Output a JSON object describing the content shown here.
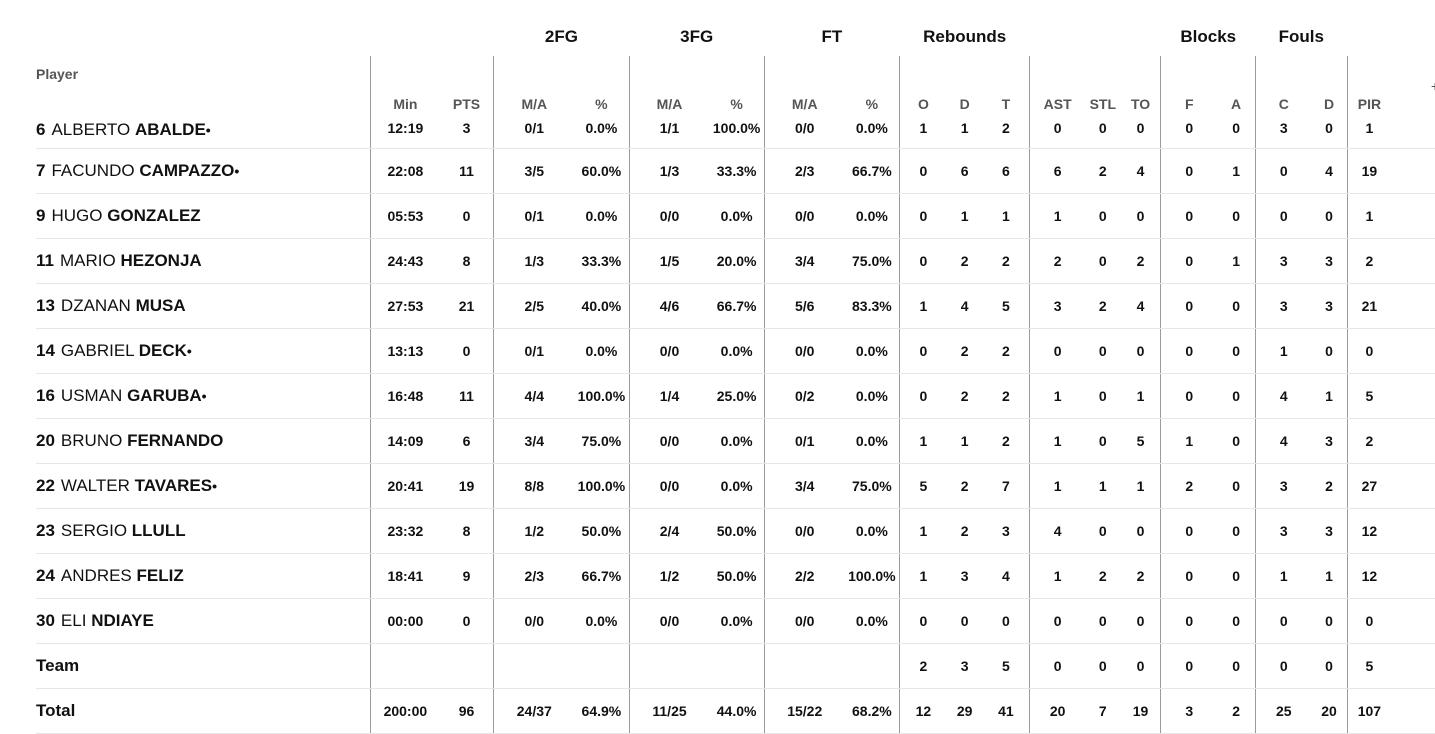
{
  "groups": {
    "fg2": "2FG",
    "fg3": "3FG",
    "ft": "FT",
    "rebounds": "Rebounds",
    "blocks": "Blocks",
    "fouls": "Fouls"
  },
  "headers": {
    "player": "Player",
    "min": "Min",
    "pts": "PTS",
    "fg2_ma": "M/A",
    "fg2_pct": "%",
    "fg3_ma": "M/A",
    "fg3_pct": "%",
    "ft_ma": "M/A",
    "ft_pct": "%",
    "reb_o": "O",
    "reb_d": "D",
    "reb_t": "T",
    "ast": "AST",
    "stl": "STL",
    "to": "TO",
    "blk_f": "F",
    "blk_a": "A",
    "foul_c": "C",
    "foul_d": "D",
    "pir": "PIR",
    "more": "+"
  },
  "players": [
    {
      "num": "6",
      "first": "ALBERTO",
      "last": "ABALDE",
      "mark": "•",
      "min": "12:19",
      "pts": "3",
      "fg2_ma": "0/1",
      "fg2_pct": "0.0%",
      "fg3_ma": "1/1",
      "fg3_pct": "100.0%",
      "ft_ma": "0/0",
      "ft_pct": "0.0%",
      "reb_o": "1",
      "reb_d": "1",
      "reb_t": "2",
      "ast": "0",
      "stl": "0",
      "to": "0",
      "blk_f": "0",
      "blk_a": "0",
      "foul_c": "3",
      "foul_d": "0",
      "pir": "1"
    },
    {
      "num": "7",
      "first": "FACUNDO",
      "last": "CAMPAZZO",
      "mark": "•",
      "min": "22:08",
      "pts": "11",
      "fg2_ma": "3/5",
      "fg2_pct": "60.0%",
      "fg3_ma": "1/3",
      "fg3_pct": "33.3%",
      "ft_ma": "2/3",
      "ft_pct": "66.7%",
      "reb_o": "0",
      "reb_d": "6",
      "reb_t": "6",
      "ast": "6",
      "stl": "2",
      "to": "4",
      "blk_f": "0",
      "blk_a": "1",
      "foul_c": "0",
      "foul_d": "4",
      "pir": "19"
    },
    {
      "num": "9",
      "first": "HUGO",
      "last": "GONZALEZ",
      "mark": "",
      "min": "05:53",
      "pts": "0",
      "fg2_ma": "0/1",
      "fg2_pct": "0.0%",
      "fg3_ma": "0/0",
      "fg3_pct": "0.0%",
      "ft_ma": "0/0",
      "ft_pct": "0.0%",
      "reb_o": "0",
      "reb_d": "1",
      "reb_t": "1",
      "ast": "1",
      "stl": "0",
      "to": "0",
      "blk_f": "0",
      "blk_a": "0",
      "foul_c": "0",
      "foul_d": "0",
      "pir": "1"
    },
    {
      "num": "11",
      "first": "MARIO",
      "last": "HEZONJA",
      "mark": "",
      "min": "24:43",
      "pts": "8",
      "fg2_ma": "1/3",
      "fg2_pct": "33.3%",
      "fg3_ma": "1/5",
      "fg3_pct": "20.0%",
      "ft_ma": "3/4",
      "ft_pct": "75.0%",
      "reb_o": "0",
      "reb_d": "2",
      "reb_t": "2",
      "ast": "2",
      "stl": "0",
      "to": "2",
      "blk_f": "0",
      "blk_a": "1",
      "foul_c": "3",
      "foul_d": "3",
      "pir": "2"
    },
    {
      "num": "13",
      "first": "DZANAN",
      "last": "MUSA",
      "mark": "",
      "min": "27:53",
      "pts": "21",
      "fg2_ma": "2/5",
      "fg2_pct": "40.0%",
      "fg3_ma": "4/6",
      "fg3_pct": "66.7%",
      "ft_ma": "5/6",
      "ft_pct": "83.3%",
      "reb_o": "1",
      "reb_d": "4",
      "reb_t": "5",
      "ast": "3",
      "stl": "2",
      "to": "4",
      "blk_f": "0",
      "blk_a": "0",
      "foul_c": "3",
      "foul_d": "3",
      "pir": "21"
    },
    {
      "num": "14",
      "first": "GABRIEL",
      "last": "DECK",
      "mark": "•",
      "min": "13:13",
      "pts": "0",
      "fg2_ma": "0/1",
      "fg2_pct": "0.0%",
      "fg3_ma": "0/0",
      "fg3_pct": "0.0%",
      "ft_ma": "0/0",
      "ft_pct": "0.0%",
      "reb_o": "0",
      "reb_d": "2",
      "reb_t": "2",
      "ast": "0",
      "stl": "0",
      "to": "0",
      "blk_f": "0",
      "blk_a": "0",
      "foul_c": "1",
      "foul_d": "0",
      "pir": "0"
    },
    {
      "num": "16",
      "first": "USMAN",
      "last": "GARUBA",
      "mark": "•",
      "min": "16:48",
      "pts": "11",
      "fg2_ma": "4/4",
      "fg2_pct": "100.0%",
      "fg3_ma": "1/4",
      "fg3_pct": "25.0%",
      "ft_ma": "0/2",
      "ft_pct": "0.0%",
      "reb_o": "0",
      "reb_d": "2",
      "reb_t": "2",
      "ast": "1",
      "stl": "0",
      "to": "1",
      "blk_f": "0",
      "blk_a": "0",
      "foul_c": "4",
      "foul_d": "1",
      "pir": "5"
    },
    {
      "num": "20",
      "first": "BRUNO",
      "last": "FERNANDO",
      "mark": "",
      "min": "14:09",
      "pts": "6",
      "fg2_ma": "3/4",
      "fg2_pct": "75.0%",
      "fg3_ma": "0/0",
      "fg3_pct": "0.0%",
      "ft_ma": "0/1",
      "ft_pct": "0.0%",
      "reb_o": "1",
      "reb_d": "1",
      "reb_t": "2",
      "ast": "1",
      "stl": "0",
      "to": "5",
      "blk_f": "1",
      "blk_a": "0",
      "foul_c": "4",
      "foul_d": "3",
      "pir": "2"
    },
    {
      "num": "22",
      "first": "WALTER",
      "last": "TAVARES",
      "mark": "•",
      "min": "20:41",
      "pts": "19",
      "fg2_ma": "8/8",
      "fg2_pct": "100.0%",
      "fg3_ma": "0/0",
      "fg3_pct": "0.0%",
      "ft_ma": "3/4",
      "ft_pct": "75.0%",
      "reb_o": "5",
      "reb_d": "2",
      "reb_t": "7",
      "ast": "1",
      "stl": "1",
      "to": "1",
      "blk_f": "2",
      "blk_a": "0",
      "foul_c": "3",
      "foul_d": "2",
      "pir": "27"
    },
    {
      "num": "23",
      "first": "SERGIO",
      "last": "LLULL",
      "mark": "",
      "min": "23:32",
      "pts": "8",
      "fg2_ma": "1/2",
      "fg2_pct": "50.0%",
      "fg3_ma": "2/4",
      "fg3_pct": "50.0%",
      "ft_ma": "0/0",
      "ft_pct": "0.0%",
      "reb_o": "1",
      "reb_d": "2",
      "reb_t": "3",
      "ast": "4",
      "stl": "0",
      "to": "0",
      "blk_f": "0",
      "blk_a": "0",
      "foul_c": "3",
      "foul_d": "3",
      "pir": "12"
    },
    {
      "num": "24",
      "first": "ANDRES",
      "last": "FELIZ",
      "mark": "",
      "min": "18:41",
      "pts": "9",
      "fg2_ma": "2/3",
      "fg2_pct": "66.7%",
      "fg3_ma": "1/2",
      "fg3_pct": "50.0%",
      "ft_ma": "2/2",
      "ft_pct": "100.0%",
      "reb_o": "1",
      "reb_d": "3",
      "reb_t": "4",
      "ast": "1",
      "stl": "2",
      "to": "2",
      "blk_f": "0",
      "blk_a": "0",
      "foul_c": "1",
      "foul_d": "1",
      "pir": "12"
    },
    {
      "num": "30",
      "first": "ELI",
      "last": "NDIAYE",
      "mark": "",
      "min": "00:00",
      "pts": "0",
      "fg2_ma": "0/0",
      "fg2_pct": "0.0%",
      "fg3_ma": "0/0",
      "fg3_pct": "0.0%",
      "ft_ma": "0/0",
      "ft_pct": "0.0%",
      "reb_o": "0",
      "reb_d": "0",
      "reb_t": "0",
      "ast": "0",
      "stl": "0",
      "to": "0",
      "blk_f": "0",
      "blk_a": "0",
      "foul_c": "0",
      "foul_d": "0",
      "pir": "0"
    }
  ],
  "team": {
    "label": "Team",
    "min": "",
    "pts": "",
    "fg2_ma": "",
    "fg2_pct": "",
    "fg3_ma": "",
    "fg3_pct": "",
    "ft_ma": "",
    "ft_pct": "",
    "reb_o": "2",
    "reb_d": "3",
    "reb_t": "5",
    "ast": "0",
    "stl": "0",
    "to": "0",
    "blk_f": "0",
    "blk_a": "0",
    "foul_c": "0",
    "foul_d": "0",
    "pir": "5"
  },
  "total": {
    "label": "Total",
    "min": "200:00",
    "pts": "96",
    "fg2_ma": "24/37",
    "fg2_pct": "64.9%",
    "fg3_ma": "11/25",
    "fg3_pct": "44.0%",
    "ft_ma": "15/22",
    "ft_pct": "68.2%",
    "reb_o": "12",
    "reb_d": "29",
    "reb_t": "41",
    "ast": "20",
    "stl": "7",
    "to": "19",
    "blk_f": "3",
    "blk_a": "2",
    "foul_c": "25",
    "foul_d": "20",
    "pir": "107"
  }
}
